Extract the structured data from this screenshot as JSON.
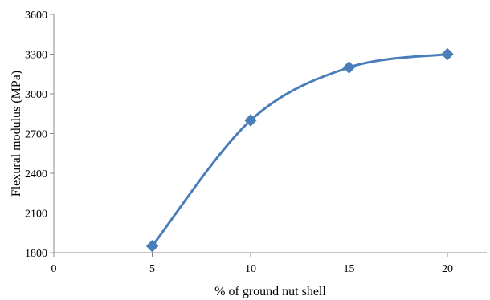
{
  "chart_data": {
    "type": "line",
    "title": "",
    "xlabel": "% of ground nut shell",
    "ylabel": "Flexural modulus (MPa)",
    "x_ticks": [
      "0",
      "5",
      "10",
      "15",
      "20"
    ],
    "y_ticks": [
      "1800",
      "2100",
      "2400",
      "2700",
      "3000",
      "3300",
      "3600"
    ],
    "xlim": [
      0,
      22
    ],
    "ylim": [
      1800,
      3600
    ],
    "grid": false,
    "legend": "none",
    "marker": "diamond",
    "smooth": true,
    "series": [
      {
        "x": [
          5,
          10,
          15,
          20
        ],
        "values": [
          1850,
          2800,
          3200,
          3300
        ]
      }
    ],
    "colors": {
      "series": "#4a7ebb",
      "axis": "#888888"
    }
  }
}
